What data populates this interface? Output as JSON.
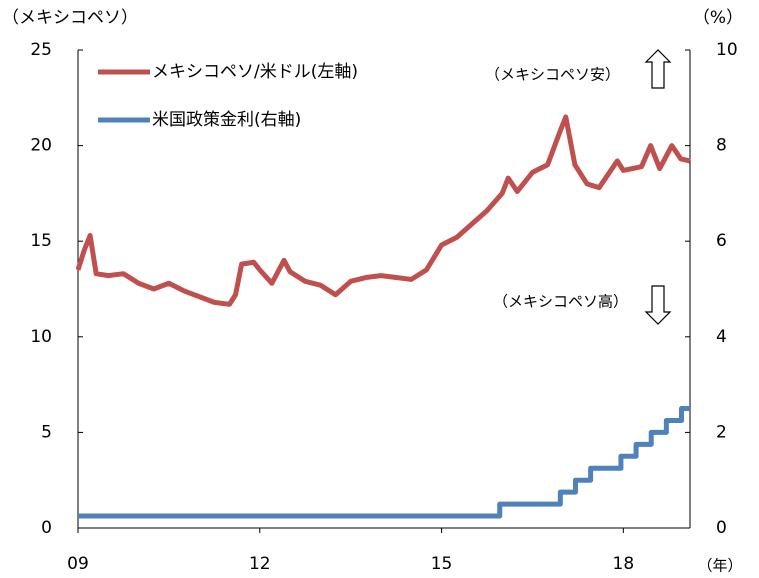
{
  "chart_data": {
    "type": "line",
    "y_label": "（メキシコペソ）",
    "y2_label": "（%）",
    "x_label": "（年）",
    "annotations": [
      "（メキシコペソ安）",
      "（メキシコペソ高）"
    ],
    "xlim": [
      9,
      19.1
    ],
    "xticks": [
      {
        "value": 9,
        "label": "09"
      },
      12,
      15,
      18
    ],
    "ylim": [
      0,
      25
    ],
    "yticks": [
      0,
      5,
      10,
      15,
      20,
      25
    ],
    "y2lim": [
      0,
      10
    ],
    "y2ticks": [
      0,
      2,
      4,
      6,
      8,
      10
    ],
    "series": [
      {
        "name": "メキシコペソ/米ドル(左軸)",
        "color": "#c0504d",
        "axis": "y",
        "x": [
          9.0,
          9.1,
          9.2,
          9.3,
          9.5,
          9.75,
          10.0,
          10.25,
          10.5,
          10.75,
          11.0,
          11.25,
          11.5,
          11.6,
          11.7,
          11.9,
          12.0,
          12.2,
          12.4,
          12.5,
          12.75,
          13.0,
          13.25,
          13.5,
          13.75,
          14.0,
          14.25,
          14.5,
          14.75,
          15.0,
          15.25,
          15.5,
          15.75,
          16.0,
          16.1,
          16.25,
          16.5,
          16.75,
          16.95,
          17.05,
          17.2,
          17.4,
          17.6,
          17.9,
          18.0,
          18.3,
          18.45,
          18.6,
          18.8,
          18.95,
          19.1
        ],
        "values": [
          13.5,
          14.5,
          15.3,
          13.3,
          13.2,
          13.3,
          12.8,
          12.5,
          12.8,
          12.4,
          12.1,
          11.8,
          11.7,
          12.2,
          13.8,
          13.9,
          13.5,
          12.8,
          14.0,
          13.4,
          12.9,
          12.7,
          12.2,
          12.9,
          13.1,
          13.2,
          13.1,
          13.0,
          13.5,
          14.8,
          15.2,
          15.9,
          16.6,
          17.5,
          18.3,
          17.6,
          18.6,
          19.0,
          20.7,
          21.5,
          19.0,
          18.0,
          17.8,
          19.2,
          18.7,
          18.9,
          20.0,
          18.8,
          20.0,
          19.3,
          19.2
        ]
      },
      {
        "name": "米国政策金利(右軸)",
        "color": "#4f81bd",
        "axis": "y2",
        "x": [
          9.0,
          15.96,
          15.96,
          16.96,
          16.96,
          17.21,
          17.21,
          17.46,
          17.46,
          17.96,
          17.96,
          18.21,
          18.21,
          18.46,
          18.46,
          18.71,
          18.71,
          18.96,
          18.96,
          19.1
        ],
        "values": [
          0.25,
          0.25,
          0.5,
          0.5,
          0.75,
          0.75,
          1.0,
          1.0,
          1.25,
          1.25,
          1.5,
          1.5,
          1.75,
          1.75,
          2.0,
          2.0,
          2.25,
          2.25,
          2.5,
          2.5
        ]
      }
    ]
  }
}
